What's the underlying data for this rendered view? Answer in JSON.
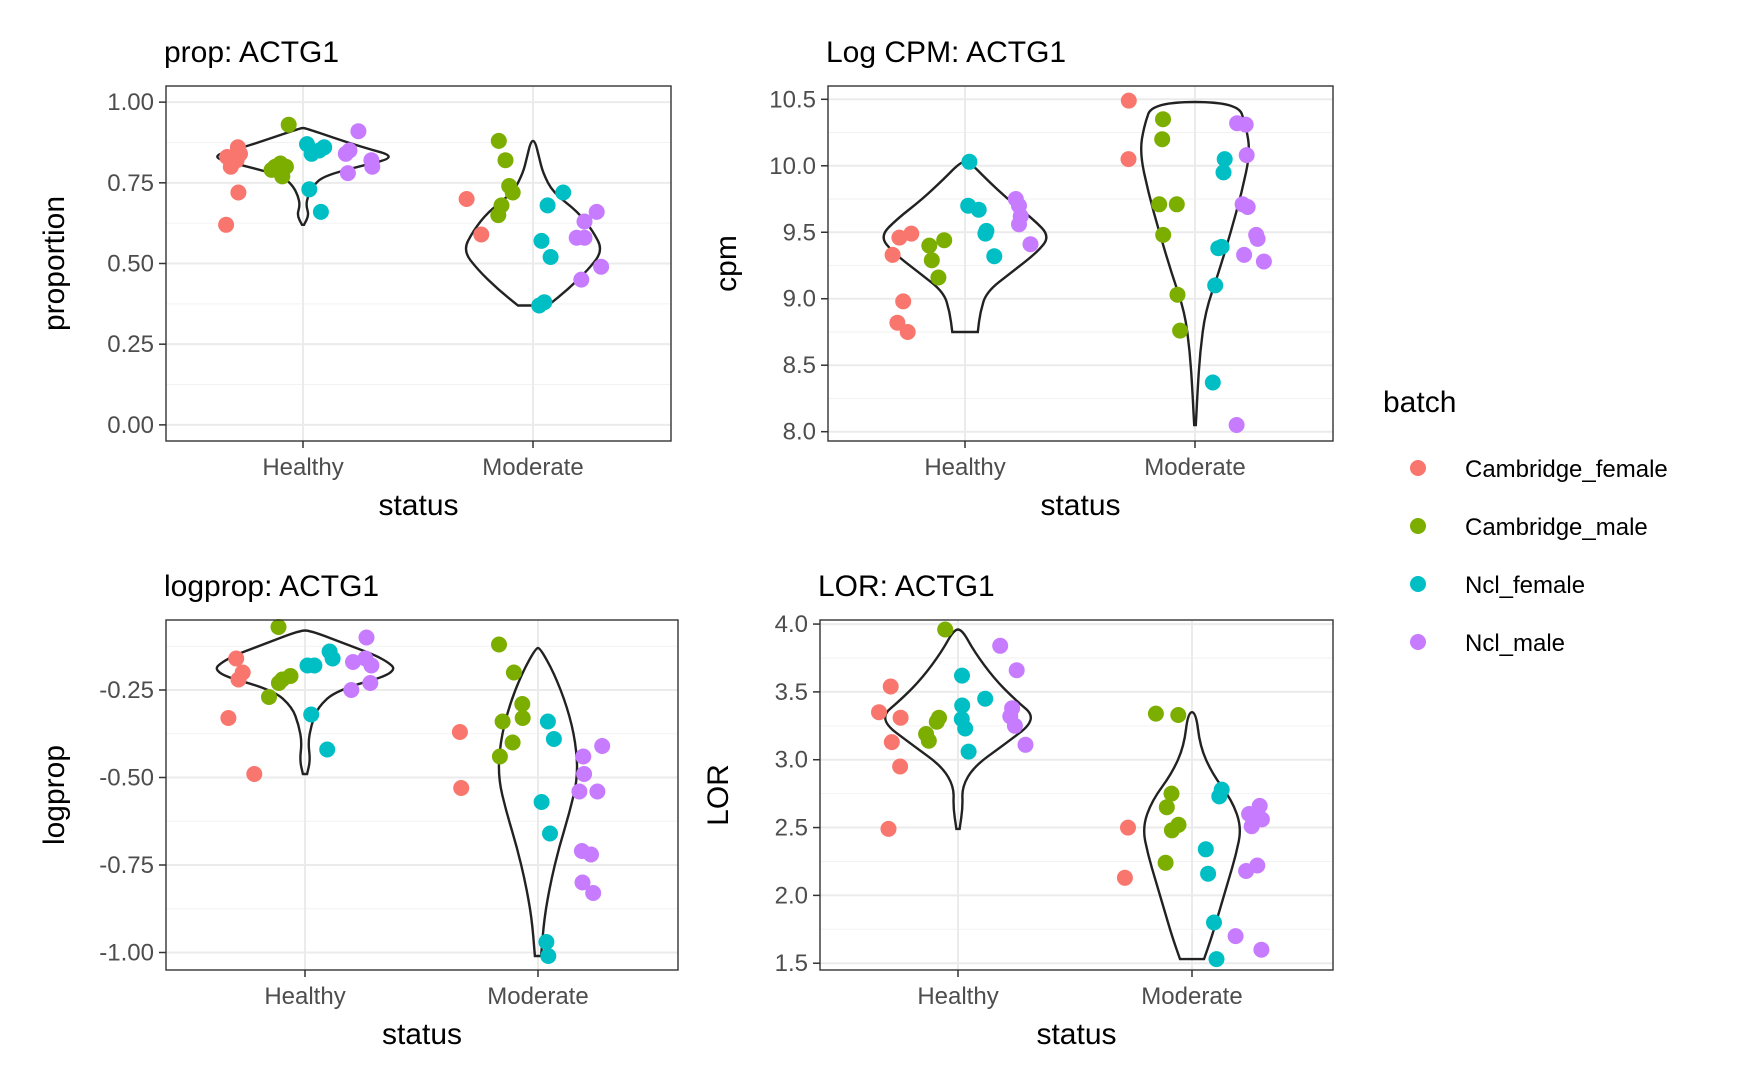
{
  "legend": {
    "title": "batch",
    "items": [
      {
        "label": "Cambridge_female",
        "color": "#F8766D"
      },
      {
        "label": "Cambridge_male",
        "color": "#7CAE00"
      },
      {
        "label": "Ncl_female",
        "color": "#00BFC4"
      },
      {
        "label": "Ncl_male",
        "color": "#C77CFF"
      }
    ]
  },
  "chart_data": [
    {
      "type": "scatter",
      "title": "prop: ACTG1",
      "xlabel": "status",
      "ylabel": "proportion",
      "categories": [
        "Healthy",
        "Moderate"
      ],
      "ylim": [
        -0.05,
        1.05
      ],
      "yticks": [
        0.0,
        0.25,
        0.5,
        0.75,
        1.0
      ],
      "ytick_labels": [
        "0.00",
        "0.25",
        "0.50",
        "0.75",
        "1.00"
      ],
      "violins": [
        {
          "category": "Healthy",
          "ymin": 0.62,
          "ymax": 0.92,
          "profile": [
            [
              0.62,
              0.01
            ],
            [
              0.65,
              0.06
            ],
            [
              0.68,
              0.03
            ],
            [
              0.71,
              0.05
            ],
            [
              0.74,
              0.1
            ],
            [
              0.77,
              0.2
            ],
            [
              0.8,
              0.55
            ],
            [
              0.83,
              0.95
            ],
            [
              0.86,
              0.6
            ],
            [
              0.89,
              0.3
            ],
            [
              0.92,
              0.02
            ]
          ]
        },
        {
          "category": "Moderate",
          "ymin": 0.37,
          "ymax": 0.88,
          "profile": [
            [
              0.37,
              0.15
            ],
            [
              0.42,
              0.35
            ],
            [
              0.48,
              0.55
            ],
            [
              0.54,
              0.7
            ],
            [
              0.6,
              0.6
            ],
            [
              0.66,
              0.45
            ],
            [
              0.72,
              0.2
            ],
            [
              0.78,
              0.1
            ],
            [
              0.83,
              0.06
            ],
            [
              0.88,
              0.02
            ]
          ]
        }
      ],
      "series": [
        {
          "name": "Cambridge_female",
          "category": "Healthy",
          "values": [
            0.86,
            0.84,
            0.83,
            0.8,
            0.82,
            0.72,
            0.62
          ]
        },
        {
          "name": "Cambridge_male",
          "category": "Healthy",
          "values": [
            0.93,
            0.81,
            0.8,
            0.79,
            0.8,
            0.77
          ]
        },
        {
          "name": "Ncl_female",
          "category": "Healthy",
          "values": [
            0.87,
            0.85,
            0.84,
            0.86,
            0.73,
            0.66
          ]
        },
        {
          "name": "Ncl_male",
          "category": "Healthy",
          "values": [
            0.91,
            0.85,
            0.84,
            0.82,
            0.8,
            0.78
          ]
        },
        {
          "name": "Cambridge_female",
          "category": "Moderate",
          "values": [
            0.7,
            0.59
          ]
        },
        {
          "name": "Cambridge_male",
          "category": "Moderate",
          "values": [
            0.88,
            0.82,
            0.74,
            0.72,
            0.68,
            0.65
          ]
        },
        {
          "name": "Ncl_female",
          "category": "Moderate",
          "values": [
            0.72,
            0.68,
            0.57,
            0.52,
            0.38,
            0.37
          ]
        },
        {
          "name": "Ncl_male",
          "category": "Moderate",
          "values": [
            0.66,
            0.63,
            0.58,
            0.58,
            0.49,
            0.45
          ]
        }
      ]
    },
    {
      "type": "scatter",
      "title": "Log CPM: ACTG1",
      "xlabel": "status",
      "ylabel": "cpm",
      "categories": [
        "Healthy",
        "Moderate"
      ],
      "ylim": [
        7.93,
        10.6
      ],
      "yticks": [
        8.0,
        8.5,
        9.0,
        9.5,
        10.0,
        10.5
      ],
      "ytick_labels": [
        "8.0",
        "8.5",
        "9.0",
        "9.5",
        "10.0",
        "10.5"
      ],
      "violins": [
        {
          "category": "Healthy",
          "ymin": 8.75,
          "ymax": 10.03,
          "profile": [
            [
              8.75,
              0.15
            ],
            [
              8.9,
              0.18
            ],
            [
              9.05,
              0.25
            ],
            [
              9.2,
              0.55
            ],
            [
              9.35,
              0.85
            ],
            [
              9.47,
              1.0
            ],
            [
              9.6,
              0.8
            ],
            [
              9.75,
              0.5
            ],
            [
              9.9,
              0.25
            ],
            [
              10.03,
              0.05
            ]
          ]
        },
        {
          "category": "Moderate",
          "ymin": 8.05,
          "ymax": 10.48,
          "profile": [
            [
              8.05,
              0.01
            ],
            [
              8.3,
              0.03
            ],
            [
              8.6,
              0.06
            ],
            [
              8.9,
              0.12
            ],
            [
              9.2,
              0.28
            ],
            [
              9.5,
              0.42
            ],
            [
              9.8,
              0.55
            ],
            [
              10.1,
              0.65
            ],
            [
              10.3,
              0.6
            ],
            [
              10.48,
              0.5
            ]
          ]
        }
      ],
      "series": [
        {
          "name": "Cambridge_female",
          "category": "Healthy",
          "values": [
            9.49,
            9.46,
            9.33,
            8.98,
            8.82,
            8.75
          ]
        },
        {
          "name": "Cambridge_male",
          "category": "Healthy",
          "values": [
            9.44,
            9.4,
            9.29,
            9.16
          ]
        },
        {
          "name": "Ncl_female",
          "category": "Healthy",
          "values": [
            10.03,
            9.7,
            9.67,
            9.51,
            9.49,
            9.32
          ]
        },
        {
          "name": "Ncl_male",
          "category": "Healthy",
          "values": [
            9.75,
            9.7,
            9.62,
            9.56,
            9.41
          ]
        },
        {
          "name": "Cambridge_female",
          "category": "Moderate",
          "values": [
            10.49,
            10.05
          ]
        },
        {
          "name": "Cambridge_male",
          "category": "Moderate",
          "values": [
            10.35,
            10.2,
            9.71,
            9.71,
            9.48,
            9.03,
            8.76
          ]
        },
        {
          "name": "Ncl_female",
          "category": "Moderate",
          "values": [
            10.05,
            9.95,
            9.39,
            9.38,
            9.1,
            8.37
          ]
        },
        {
          "name": "Ncl_male",
          "category": "Moderate",
          "values": [
            10.32,
            10.31,
            10.08,
            9.71,
            9.69,
            9.48,
            9.45,
            9.33,
            9.28,
            8.05
          ]
        }
      ]
    },
    {
      "type": "scatter",
      "title": "logprop: ACTG1",
      "xlabel": "status",
      "ylabel": "logprop",
      "categories": [
        "Healthy",
        "Moderate"
      ],
      "ylim": [
        -1.05,
        -0.05
      ],
      "yticks": [
        -1.0,
        -0.75,
        -0.5,
        -0.25
      ],
      "ytick_labels": [
        "-1.00",
        "-0.75",
        "-0.50",
        "-0.25"
      ],
      "violins": [
        {
          "category": "Healthy",
          "ymin": -0.49,
          "ymax": -0.08,
          "profile": [
            [
              -0.49,
              0.02
            ],
            [
              -0.45,
              0.05
            ],
            [
              -0.4,
              0.03
            ],
            [
              -0.35,
              0.06
            ],
            [
              -0.3,
              0.12
            ],
            [
              -0.25,
              0.3
            ],
            [
              -0.2,
              0.9
            ],
            [
              -0.16,
              0.75
            ],
            [
              -0.12,
              0.4
            ],
            [
              -0.08,
              0.05
            ]
          ]
        },
        {
          "category": "Moderate",
          "ymin": -1.01,
          "ymax": -0.13,
          "profile": [
            [
              -1.01,
              0.03
            ],
            [
              -0.9,
              0.06
            ],
            [
              -0.8,
              0.12
            ],
            [
              -0.7,
              0.2
            ],
            [
              -0.6,
              0.3
            ],
            [
              -0.5,
              0.38
            ],
            [
              -0.4,
              0.36
            ],
            [
              -0.3,
              0.28
            ],
            [
              -0.2,
              0.15
            ],
            [
              -0.13,
              0.02
            ]
          ]
        }
      ],
      "series": [
        {
          "name": "Cambridge_female",
          "category": "Healthy",
          "values": [
            -0.16,
            -0.2,
            -0.22,
            -0.33,
            -0.49
          ]
        },
        {
          "name": "Cambridge_male",
          "category": "Healthy",
          "values": [
            -0.07,
            -0.21,
            -0.22,
            -0.23,
            -0.27
          ]
        },
        {
          "name": "Ncl_female",
          "category": "Healthy",
          "values": [
            -0.14,
            -0.16,
            -0.18,
            -0.18,
            -0.32,
            -0.42
          ]
        },
        {
          "name": "Ncl_male",
          "category": "Healthy",
          "values": [
            -0.1,
            -0.16,
            -0.18,
            -0.17,
            -0.23,
            -0.25
          ]
        },
        {
          "name": "Cambridge_female",
          "category": "Moderate",
          "values": [
            -0.37,
            -0.53
          ]
        },
        {
          "name": "Cambridge_male",
          "category": "Moderate",
          "values": [
            -0.12,
            -0.2,
            -0.29,
            -0.33,
            -0.34,
            -0.4,
            -0.44
          ]
        },
        {
          "name": "Ncl_female",
          "category": "Moderate",
          "values": [
            -0.34,
            -0.39,
            -0.57,
            -0.66,
            -0.97,
            -1.01
          ]
        },
        {
          "name": "Ncl_male",
          "category": "Moderate",
          "values": [
            -0.41,
            -0.44,
            -0.49,
            -0.54,
            -0.54,
            -0.71,
            -0.72,
            -0.8,
            -0.83
          ]
        }
      ]
    },
    {
      "type": "scatter",
      "title": "LOR: ACTG1",
      "xlabel": "status",
      "ylabel": "LOR",
      "categories": [
        "Healthy",
        "Moderate"
      ],
      "ylim": [
        1.45,
        4.03
      ],
      "yticks": [
        1.5,
        2.0,
        2.5,
        3.0,
        3.5,
        4.0
      ],
      "ytick_labels": [
        "1.5",
        "2.0",
        "2.5",
        "3.0",
        "3.5",
        "4.0"
      ],
      "violins": [
        {
          "category": "Healthy",
          "ymin": 2.49,
          "ymax": 3.96,
          "profile": [
            [
              2.49,
              0.02
            ],
            [
              2.65,
              0.06
            ],
            [
              2.8,
              0.05
            ],
            [
              2.95,
              0.2
            ],
            [
              3.1,
              0.55
            ],
            [
              3.3,
              1.0
            ],
            [
              3.45,
              0.7
            ],
            [
              3.6,
              0.45
            ],
            [
              3.8,
              0.2
            ],
            [
              3.96,
              0.05
            ]
          ]
        },
        {
          "category": "Moderate",
          "ymin": 1.53,
          "ymax": 3.35,
          "profile": [
            [
              1.53,
              0.15
            ],
            [
              1.7,
              0.25
            ],
            [
              1.9,
              0.35
            ],
            [
              2.1,
              0.45
            ],
            [
              2.3,
              0.55
            ],
            [
              2.5,
              0.62
            ],
            [
              2.7,
              0.5
            ],
            [
              2.9,
              0.25
            ],
            [
              3.1,
              0.1
            ],
            [
              3.35,
              0.05
            ]
          ]
        }
      ],
      "series": [
        {
          "name": "Cambridge_female",
          "category": "Healthy",
          "values": [
            3.54,
            3.35,
            3.31,
            3.13,
            2.95,
            2.49
          ]
        },
        {
          "name": "Cambridge_male",
          "category": "Healthy",
          "values": [
            3.96,
            3.31,
            3.28,
            3.19,
            3.14
          ]
        },
        {
          "name": "Ncl_female",
          "category": "Healthy",
          "values": [
            3.62,
            3.45,
            3.4,
            3.3,
            3.23,
            3.06
          ]
        },
        {
          "name": "Ncl_male",
          "category": "Healthy",
          "values": [
            3.84,
            3.66,
            3.38,
            3.32,
            3.25,
            3.11
          ]
        },
        {
          "name": "Cambridge_female",
          "category": "Moderate",
          "values": [
            2.5,
            2.13
          ]
        },
        {
          "name": "Cambridge_male",
          "category": "Moderate",
          "values": [
            3.34,
            3.33,
            2.75,
            2.65,
            2.52,
            2.48,
            2.24
          ]
        },
        {
          "name": "Ncl_female",
          "category": "Moderate",
          "values": [
            2.78,
            2.73,
            2.34,
            2.16,
            1.8,
            1.53
          ]
        },
        {
          "name": "Ncl_male",
          "category": "Moderate",
          "values": [
            2.66,
            2.6,
            2.56,
            2.51,
            2.22,
            2.18,
            1.7,
            1.6
          ]
        }
      ]
    }
  ]
}
